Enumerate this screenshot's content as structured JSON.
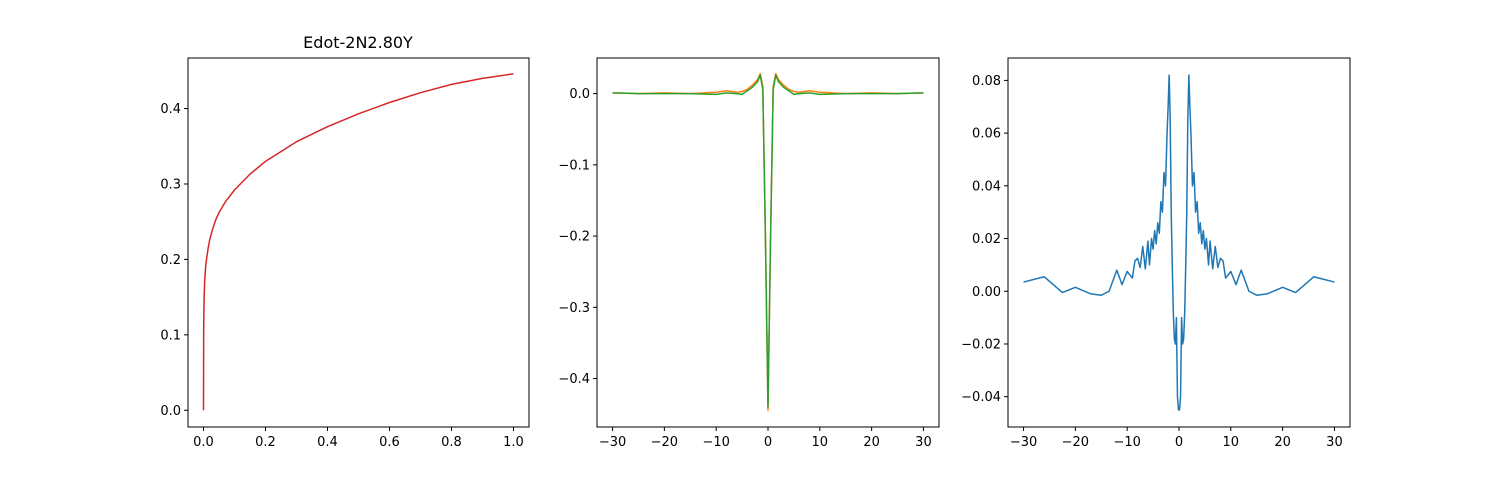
{
  "chart_data": [
    {
      "type": "line",
      "title": "Edot-2N2.80Y",
      "xlabel": "",
      "ylabel": "",
      "xlim": [
        -0.05,
        1.05
      ],
      "ylim": [
        -0.0222,
        0.467
      ],
      "xticks": [
        0.0,
        0.2,
        0.4,
        0.6,
        0.8,
        1.0
      ],
      "xtick_labels": [
        "0.0",
        "0.2",
        "0.4",
        "0.6",
        "0.8",
        "1.0"
      ],
      "yticks": [
        0.0,
        0.1,
        0.2,
        0.3,
        0.4
      ],
      "ytick_labels": [
        "0.0",
        "0.1",
        "0.2",
        "0.3",
        "0.4"
      ],
      "grid": false,
      "series": [
        {
          "color": "#d62728",
          "x": [
            0,
            0.0005,
            0.001,
            0.002,
            0.004,
            0.007,
            0.01,
            0.015,
            0.02,
            0.03,
            0.04,
            0.05,
            0.07,
            0.1,
            0.15,
            0.2,
            0.3,
            0.4,
            0.5,
            0.6,
            0.7,
            0.8,
            0.9,
            1.0
          ],
          "values": [
            0.0,
            0.1,
            0.125,
            0.15,
            0.173,
            0.191,
            0.201,
            0.215,
            0.226,
            0.241,
            0.253,
            0.262,
            0.276,
            0.292,
            0.313,
            0.33,
            0.356,
            0.376,
            0.393,
            0.408,
            0.421,
            0.432,
            0.44,
            0.446
          ]
        }
      ]
    },
    {
      "type": "line",
      "title": "",
      "xlabel": "",
      "ylabel": "",
      "xlim": [
        -33,
        33
      ],
      "ylim": [
        -0.468,
        0.05
      ],
      "xticks": [
        -30,
        -20,
        -10,
        0,
        10,
        20,
        30
      ],
      "xtick_labels": [
        "−30",
        "−20",
        "−10",
        "0",
        "10",
        "20",
        "30"
      ],
      "yticks": [
        0.0,
        -0.1,
        -0.2,
        -0.3,
        -0.4
      ],
      "ytick_labels": [
        "0.0",
        "−0.1",
        "−0.2",
        "−0.3",
        "−0.4"
      ],
      "grid": false,
      "x": [
        -30,
        -25,
        -20,
        -15,
        -10,
        -8,
        -6,
        -5,
        -4,
        -3,
        -2,
        -1.5,
        -1,
        -0.5,
        0,
        0.5,
        1,
        1.5,
        2,
        3,
        4,
        5,
        6,
        8,
        10,
        15,
        20,
        25,
        30
      ],
      "series": [
        {
          "color": "#ff7f0e",
          "values": [
            0.001,
            0.0,
            0.001,
            0.0,
            0.002,
            0.004,
            0.002,
            0.003,
            0.006,
            0.012,
            0.02,
            0.028,
            0.01,
            -0.2,
            -0.445,
            -0.2,
            0.01,
            0.028,
            0.02,
            0.012,
            0.006,
            0.003,
            0.002,
            0.004,
            0.002,
            0.0,
            0.001,
            0.0,
            0.001
          ]
        },
        {
          "color": "#2ca02c",
          "values": [
            0.001,
            0.0,
            0.0,
            0.0,
            -0.001,
            0.001,
            0.0,
            -0.001,
            0.004,
            0.009,
            0.017,
            0.026,
            0.006,
            -0.2,
            -0.44,
            -0.2,
            0.006,
            0.026,
            0.017,
            0.009,
            0.004,
            -0.001,
            0.0,
            0.001,
            -0.001,
            0.0,
            0.0,
            0.0,
            0.001
          ]
        }
      ]
    },
    {
      "type": "line",
      "title": "",
      "xlabel": "",
      "ylabel": "",
      "xlim": [
        -33,
        33
      ],
      "ylim": [
        -0.0515,
        0.0885
      ],
      "xticks": [
        -30,
        -20,
        -10,
        0,
        10,
        20,
        30
      ],
      "xtick_labels": [
        "−30",
        "−20",
        "−10",
        "0",
        "10",
        "20",
        "30"
      ],
      "yticks": [
        0.08,
        0.06,
        0.04,
        0.02,
        0.0,
        -0.02,
        -0.04
      ],
      "ytick_labels": [
        "0.08",
        "0.06",
        "0.04",
        "0.02",
        "0.00",
        "−0.02",
        "−0.04"
      ],
      "grid": false,
      "series": [
        {
          "color": "#1f77b4",
          "x": [
            -30,
            -26,
            -22.5,
            -20,
            -17,
            -15,
            -13.5,
            -12,
            -11,
            -10,
            -9,
            -8.5,
            -8,
            -7.5,
            -7,
            -6.5,
            -6,
            -5.7,
            -5.3,
            -5,
            -4.7,
            -4.4,
            -4.1,
            -3.8,
            -3.5,
            -3.2,
            -2.9,
            -2.6,
            -2.3,
            -2.1,
            -1.9,
            -1.7,
            -1.5,
            -1.3,
            -1.1,
            -0.9,
            -0.7,
            -0.5,
            -0.3,
            -0.1,
            0.1,
            0.3,
            0.5,
            0.7,
            0.9,
            1.1,
            1.3,
            1.5,
            1.7,
            1.9,
            2.1,
            2.3,
            2.6,
            2.9,
            3.2,
            3.5,
            3.8,
            4.1,
            4.4,
            4.7,
            5,
            5.3,
            5.7,
            6,
            6.5,
            7,
            7.5,
            8,
            8.5,
            9,
            10,
            11,
            12,
            13.5,
            15,
            17,
            20,
            22.5,
            26,
            30
          ],
          "values": [
            0.0035,
            0.0055,
            -0.0005,
            0.0015,
            -0.001,
            -0.0015,
            0.0,
            0.008,
            0.0025,
            0.0075,
            0.005,
            0.0115,
            0.0125,
            0.009,
            0.017,
            0.0085,
            0.019,
            0.01,
            0.02,
            0.016,
            0.023,
            0.018,
            0.026,
            0.022,
            0.034,
            0.03,
            0.045,
            0.04,
            0.06,
            0.07,
            0.082,
            0.065,
            0.03,
            0.01,
            -0.008,
            -0.018,
            -0.02,
            -0.01,
            -0.04,
            -0.045,
            -0.045,
            -0.04,
            -0.01,
            -0.02,
            -0.018,
            -0.008,
            0.01,
            0.03,
            0.065,
            0.082,
            0.07,
            0.06,
            0.04,
            0.045,
            0.03,
            0.034,
            0.022,
            0.026,
            0.018,
            0.023,
            0.016,
            0.02,
            0.01,
            0.019,
            0.0085,
            0.017,
            0.009,
            0.0125,
            0.0115,
            0.005,
            0.0075,
            0.0025,
            0.008,
            0.0,
            -0.0015,
            -0.001,
            0.0015,
            -0.0005,
            0.0055,
            0.0035
          ]
        }
      ]
    }
  ]
}
